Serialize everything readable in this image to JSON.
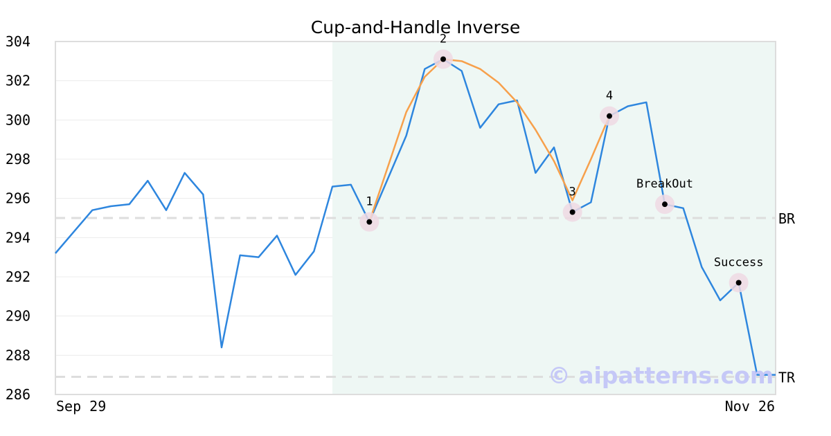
{
  "chart_data": {
    "type": "line",
    "title": "Cup-and-Handle Inverse",
    "xlabel": "",
    "ylabel": "",
    "ylim": [
      286,
      304
    ],
    "y_ticks": [
      286,
      288,
      290,
      292,
      294,
      296,
      298,
      300,
      302,
      304
    ],
    "x_tick_labels": [
      "Sep 29",
      "Nov 26"
    ],
    "grid": true,
    "colors": {
      "price_line": "#2e86de",
      "pattern_line": "#f7a04b",
      "highlight_band": "#eef7f4",
      "marker_halo": "#eed9e3",
      "marker_dot": "#000000",
      "reference_line": "#dddddd",
      "watermark": "#c5c8f7"
    },
    "series": [
      {
        "values": [
          293.2,
          294.3,
          295.4,
          295.6,
          295.7,
          296.9,
          295.4,
          297.3,
          296.2,
          288.4,
          293.1,
          293.0,
          294.1,
          292.1,
          293.3,
          296.6,
          296.7,
          294.8,
          297.0,
          299.2,
          302.6,
          303.1,
          302.5,
          299.6,
          300.8,
          301.0,
          297.3,
          298.6,
          295.3,
          295.8,
          300.2,
          300.7,
          300.9,
          295.7,
          295.5,
          292.5,
          290.8,
          291.7,
          287.0,
          287.0
        ]
      },
      {
        "points": [
          [
            17,
            294.8
          ],
          [
            19,
            300.4
          ],
          [
            20,
            302.2
          ],
          [
            21,
            303.1
          ],
          [
            22,
            303.0
          ],
          [
            23,
            302.6
          ],
          [
            24,
            301.9
          ],
          [
            25,
            300.9
          ],
          [
            26,
            299.5
          ],
          [
            27,
            297.9
          ],
          [
            28,
            295.9
          ],
          [
            29,
            298.0
          ],
          [
            30,
            300.2
          ]
        ]
      }
    ],
    "highlight_range": [
      15,
      39
    ],
    "reference_lines": [
      {
        "label": "BR",
        "value": 295.0
      },
      {
        "label": "TR",
        "value": 286.9
      }
    ],
    "annotations": [
      {
        "label": "1",
        "index": 17,
        "value": 294.8
      },
      {
        "label": "2",
        "index": 21,
        "value": 303.1
      },
      {
        "label": "3",
        "index": 28,
        "value": 295.3
      },
      {
        "label": "4",
        "index": 30,
        "value": 300.2
      },
      {
        "label": "BreakOut",
        "index": 33,
        "value": 295.7
      },
      {
        "label": "Success",
        "index": 37,
        "value": 291.7
      }
    ],
    "watermark": "© aipatterns.com"
  }
}
